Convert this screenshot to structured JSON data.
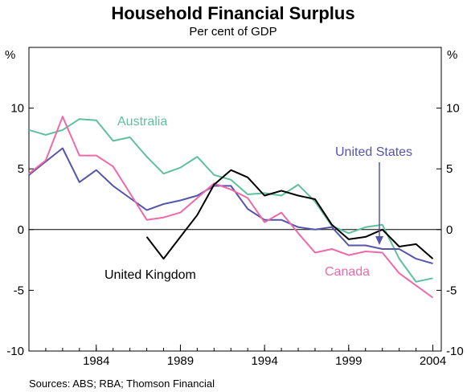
{
  "chart_data": {
    "type": "line",
    "title": "Household Financial Surplus",
    "subtitle": "Per cent of GDP",
    "ylabel_left": "%",
    "ylabel_right": "%",
    "ylim": [
      -10,
      15
    ],
    "xlim": [
      1980,
      2004.5
    ],
    "yticks": [
      -10,
      -5,
      0,
      5,
      10
    ],
    "ytick_labels": [
      "-10",
      "-5",
      "0",
      "5",
      "10"
    ],
    "xticks": [
      1984,
      1989,
      1994,
      1999,
      2004
    ],
    "xtick_labels": [
      "1984",
      "1989",
      "1994",
      "1999",
      "2004"
    ],
    "grid": false,
    "zero_line": true,
    "series": [
      {
        "name": "Australia",
        "color": "#5fbf9f",
        "x": [
          1980,
          1981,
          1982,
          1983,
          1984,
          1985,
          1986,
          1987,
          1988,
          1989,
          1990,
          1991,
          1992,
          1993,
          1994,
          1995,
          1996,
          1997,
          1998,
          1999,
          2000,
          2001,
          2002,
          2003,
          2004
        ],
        "y": [
          8.2,
          7.8,
          8.2,
          9.1,
          9.0,
          7.3,
          7.6,
          6.0,
          4.6,
          5.1,
          6.0,
          4.5,
          4.1,
          2.9,
          3.0,
          2.8,
          3.7,
          2.3,
          0.3,
          -0.3,
          0.2,
          0.4,
          -2.4,
          -4.3,
          -4.0
        ]
      },
      {
        "name": "United States",
        "color": "#5555aa",
        "x": [
          1980,
          1981,
          1982,
          1983,
          1984,
          1985,
          1986,
          1987,
          1988,
          1989,
          1990,
          1991,
          1992,
          1993,
          1994,
          1995,
          1996,
          1997,
          1998,
          1999,
          2000,
          2001,
          2002,
          2003,
          2004
        ],
        "y": [
          4.5,
          5.6,
          6.7,
          3.9,
          4.9,
          3.6,
          2.6,
          1.6,
          2.1,
          2.4,
          2.8,
          3.6,
          3.6,
          1.7,
          0.8,
          0.8,
          0.2,
          0.0,
          0.2,
          -1.3,
          -1.3,
          -1.6,
          -1.6,
          -2.4,
          -2.8
        ]
      },
      {
        "name": "Canada",
        "color": "#ee6aa7",
        "x": [
          1980,
          1981,
          1982,
          1983,
          1984,
          1985,
          1986,
          1987,
          1988,
          1989,
          1990,
          1991,
          1992,
          1993,
          1994,
          1995,
          1996,
          1997,
          1998,
          1999,
          2000,
          2001,
          2002,
          2003,
          2004
        ],
        "y": [
          4.6,
          5.7,
          9.3,
          6.1,
          6.1,
          5.2,
          3.0,
          0.8,
          1.0,
          1.4,
          2.6,
          3.8,
          3.3,
          2.6,
          0.6,
          1.4,
          -0.3,
          -1.9,
          -1.6,
          -2.1,
          -1.8,
          -1.9,
          -3.6,
          -4.6,
          -5.6
        ]
      },
      {
        "name": "United Kingdom",
        "color": "#000000",
        "x": [
          1987,
          1988,
          1989,
          1990,
          1991,
          1992,
          1993,
          1994,
          1995,
          1996,
          1997,
          1998,
          1999,
          2000,
          2001,
          2002,
          2003,
          2004
        ],
        "y": [
          -0.6,
          -2.4,
          -0.6,
          1.2,
          3.7,
          4.9,
          4.3,
          2.8,
          3.2,
          2.8,
          2.5,
          0.4,
          -0.8,
          -0.6,
          0.0,
          -1.4,
          -1.2,
          -2.4
        ]
      }
    ],
    "labels": [
      {
        "text": "Australia",
        "series": "Australia"
      },
      {
        "text": "United States",
        "series": "United States"
      },
      {
        "text": "Canada",
        "series": "Canada"
      },
      {
        "text": "United Kingdom",
        "series": "United Kingdom"
      }
    ]
  },
  "source_note": "Sources: ABS; RBA; Thomson Financial",
  "arrow_color": "#5555aa"
}
